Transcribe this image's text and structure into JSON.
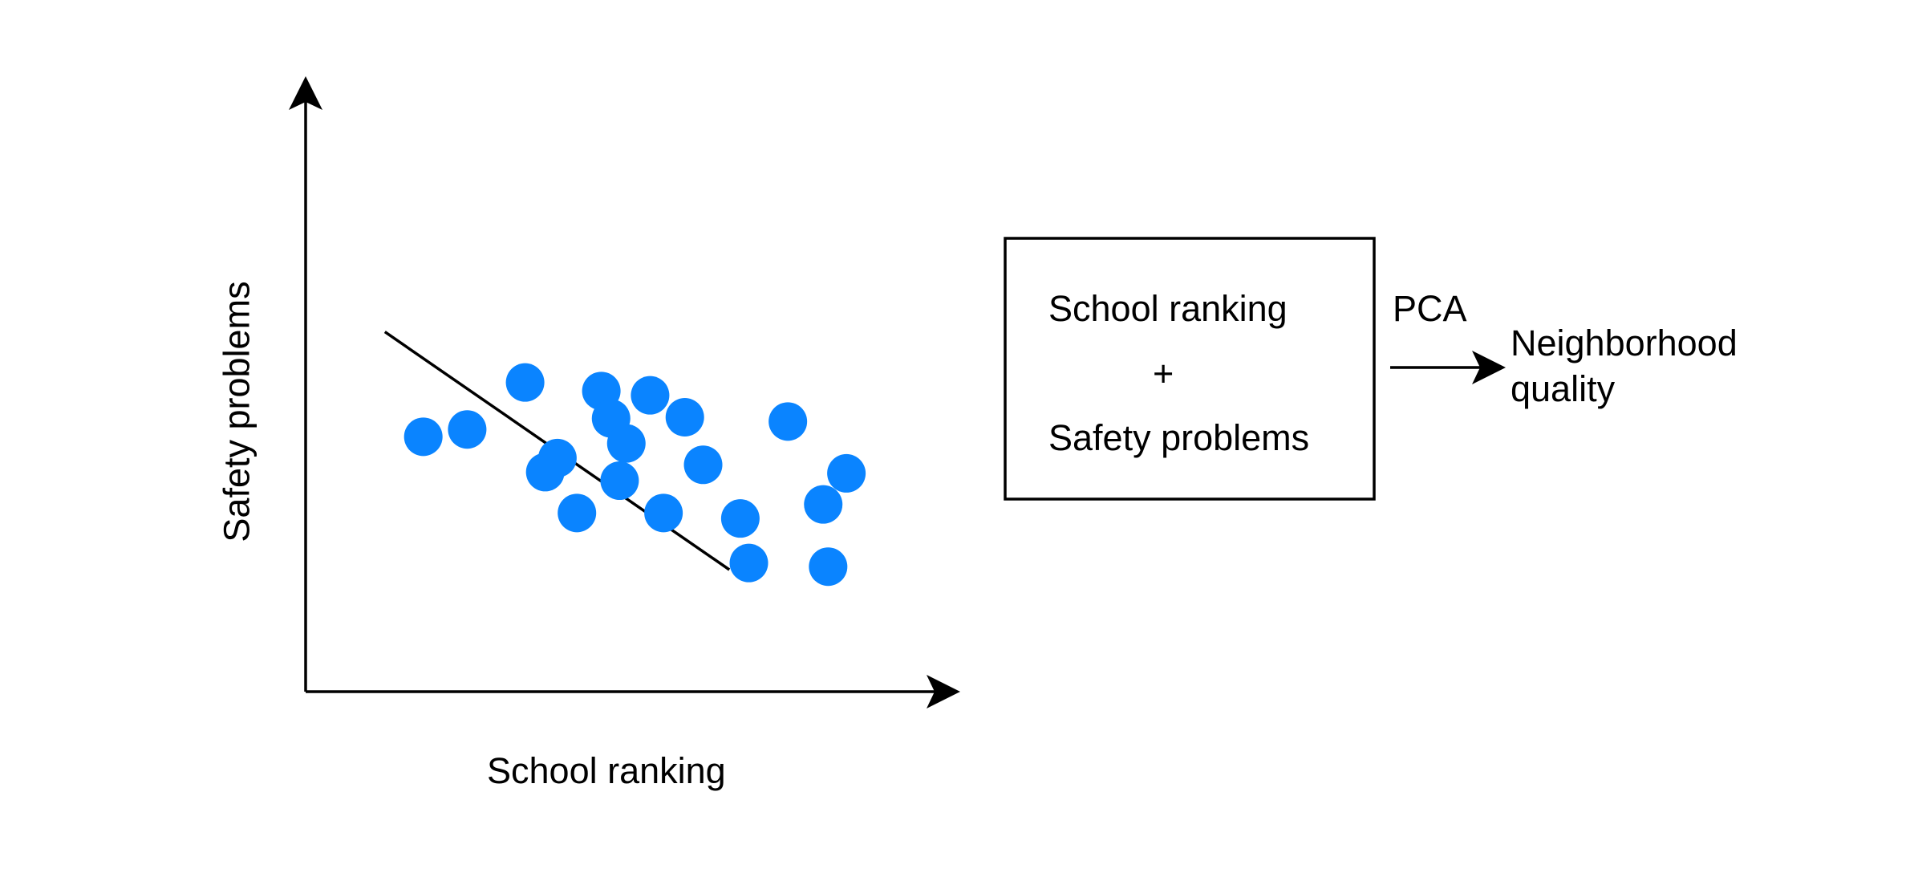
{
  "chart_data": {
    "type": "scatter",
    "xlabel": "School ranking",
    "ylabel": "Safety problems",
    "points": [
      {
        "x": 1.93,
        "y": 4.18
      },
      {
        "x": 2.65,
        "y": 4.3
      },
      {
        "x": 3.6,
        "y": 5.07
      },
      {
        "x": 3.93,
        "y": 3.6
      },
      {
        "x": 4.13,
        "y": 3.83
      },
      {
        "x": 4.45,
        "y": 2.93
      },
      {
        "x": 4.85,
        "y": 4.93
      },
      {
        "x": 5.01,
        "y": 4.48
      },
      {
        "x": 5.15,
        "y": 3.46
      },
      {
        "x": 5.26,
        "y": 4.07
      },
      {
        "x": 5.65,
        "y": 4.86
      },
      {
        "x": 5.87,
        "y": 2.93
      },
      {
        "x": 6.22,
        "y": 4.5
      },
      {
        "x": 6.52,
        "y": 3.72
      },
      {
        "x": 7.13,
        "y": 2.84
      },
      {
        "x": 7.27,
        "y": 2.11
      },
      {
        "x": 7.91,
        "y": 4.43
      },
      {
        "x": 8.49,
        "y": 3.07
      },
      {
        "x": 8.87,
        "y": 3.58
      },
      {
        "x": 8.57,
        "y": 2.05
      }
    ],
    "fit_line": {
      "x1": 1.3,
      "y1": 5.9,
      "x2": 6.95,
      "y2": 2.0
    },
    "point_color": "#0a84ff",
    "line_color": "#000000",
    "axis_color": "#000000",
    "grid": false,
    "legend": "none"
  },
  "box": {
    "line1": "School ranking",
    "line2": "+",
    "line3": "Safety problems"
  },
  "arrow": {
    "label": "PCA"
  },
  "output": {
    "line1": "Neighborhood",
    "line2": "quality"
  }
}
